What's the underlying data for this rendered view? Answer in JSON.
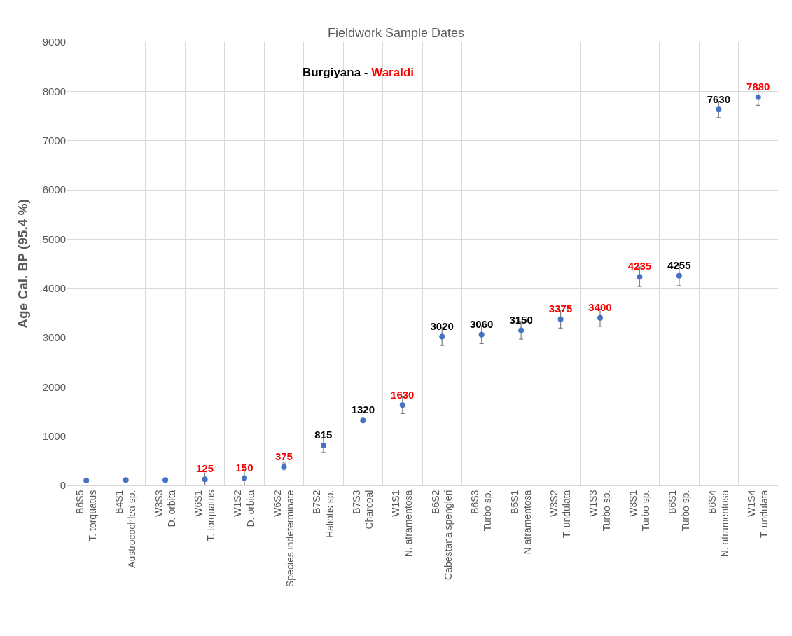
{
  "chart_data": {
    "type": "scatter",
    "title": "Fieldwork Sample Dates",
    "subtitle": "Burgiyana - Waraldi",
    "ylabel": "Age Cal. BP (95.4 %)",
    "categories": [
      "B6S5\nT. torquatus",
      "B4S1\nAustrocochlea sp.",
      "W3S3\nD. orbita",
      "W6S1\nT. torquatus",
      "W1S2\nD. orbita",
      "W6S2\nSpecies indeterminate",
      "B7S2\nHaliotis sp.",
      "B7S3\nCharcoal",
      "W1S1\nN. atramentosa",
      "B6S2\nCabestana spengleri",
      "B6S3\nTurbo sp.",
      "B5S1\nN.atramentosa",
      "W3S2\nT. undulata",
      "W1S3\nTurbo sp.",
      "W3S1\nTurbo sp.",
      "B6S1\nTurbo sp.",
      "B6S4\nN. atramentosa",
      "W1S4\nT. undulata"
    ],
    "series": [
      {
        "color": "#4472c4",
        "values": [
          100,
          110,
          null,
          null,
          null,
          null,
          815,
          1320,
          null,
          3020,
          3060,
          3150,
          null,
          null,
          null,
          4255,
          7630,
          null
        ],
        "errors": [
          null,
          null,
          null,
          null,
          null,
          null,
          150,
          30,
          null,
          180,
          180,
          180,
          null,
          null,
          null,
          200,
          165,
          null
        ],
        "value_labels": [
          null,
          null,
          null,
          null,
          null,
          null,
          "815",
          "1320",
          null,
          "3020",
          "3060",
          "3150",
          null,
          null,
          null,
          "4255",
          "7630",
          null
        ]
      },
      {
        "color": "#4472c4",
        "values": [
          null,
          null,
          110,
          125,
          150,
          375,
          null,
          null,
          1630,
          null,
          null,
          null,
          3375,
          3400,
          4235,
          null,
          null,
          7880
        ],
        "errors": [
          null,
          null,
          null,
          125,
          [
            150,
            170
          ],
          80,
          null,
          null,
          170,
          null,
          null,
          null,
          180,
          170,
          200,
          null,
          null,
          165
        ],
        "value_labels": [
          null,
          null,
          null,
          "125",
          "150",
          "375",
          null,
          null,
          "1630",
          null,
          null,
          null,
          "3375",
          "3400",
          "4235",
          null,
          null,
          "7880"
        ]
      }
    ],
    "ylim": [
      0,
      9000
    ],
    "yticks": [
      0,
      1000,
      2000,
      3000,
      4000,
      5000,
      6000,
      7000,
      8000,
      9000
    ],
    "grid": true,
    "marker": "circle"
  }
}
